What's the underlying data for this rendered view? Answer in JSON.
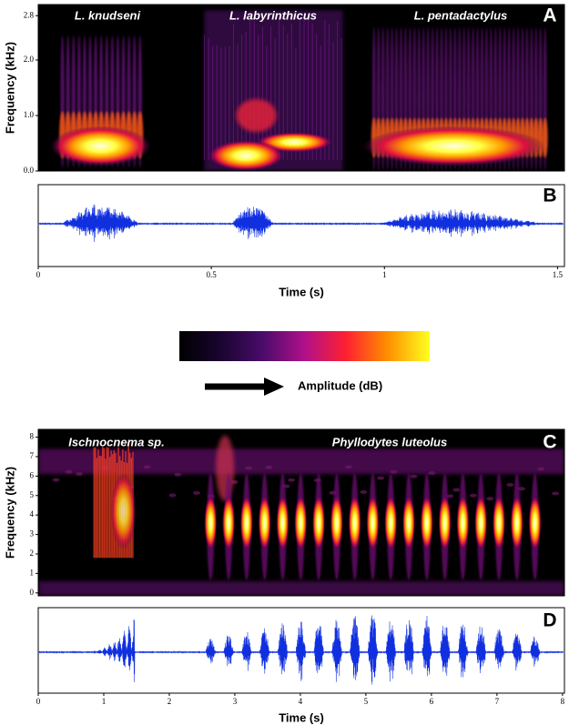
{
  "chart_data": [
    {
      "type": "spectrogram",
      "panel": "A",
      "ylabel": "Frequency (kHz)",
      "annotations": [
        "L. knudseni",
        "L. labyrinthicus",
        "L. pentadactylus"
      ],
      "xlim": [
        0,
        1.52
      ],
      "ylim": [
        0,
        3
      ],
      "yticks": [
        {
          "value": 0,
          "label": "0.0"
        },
        {
          "value": 1,
          "label": "1.0"
        },
        {
          "value": 2,
          "label": "2.0"
        },
        {
          "value": 2.8,
          "label": "2.8"
        }
      ]
    },
    {
      "type": "waveform",
      "panel": "B",
      "xlabel": "Time (s)",
      "xlim": [
        0,
        1.52
      ],
      "xticks": [
        0,
        0.5,
        1,
        1.5
      ]
    },
    {
      "type": "colorbar",
      "label": "Amplitude (dB)",
      "colors": [
        "#000000",
        "#1a0530",
        "#4a0c6a",
        "#b0108a",
        "#ff2030",
        "#ff9000",
        "#ffff20"
      ]
    },
    {
      "type": "spectrogram",
      "panel": "C",
      "ylabel": "Frequency (kHz)",
      "annotations": [
        "Ischnocnema sp.",
        "Phyllodytes luteolus"
      ],
      "xlim": [
        0,
        8.03
      ],
      "ylim": [
        -0.15,
        8.4
      ],
      "yticks": [
        0,
        1,
        2,
        3,
        4,
        5,
        6,
        7,
        8
      ]
    },
    {
      "type": "waveform",
      "panel": "D",
      "xlabel": "Time (s)",
      "xlim": [
        0,
        8.03
      ],
      "xticks": [
        0,
        1,
        2,
        3,
        4,
        5,
        6,
        7,
        8
      ]
    }
  ]
}
